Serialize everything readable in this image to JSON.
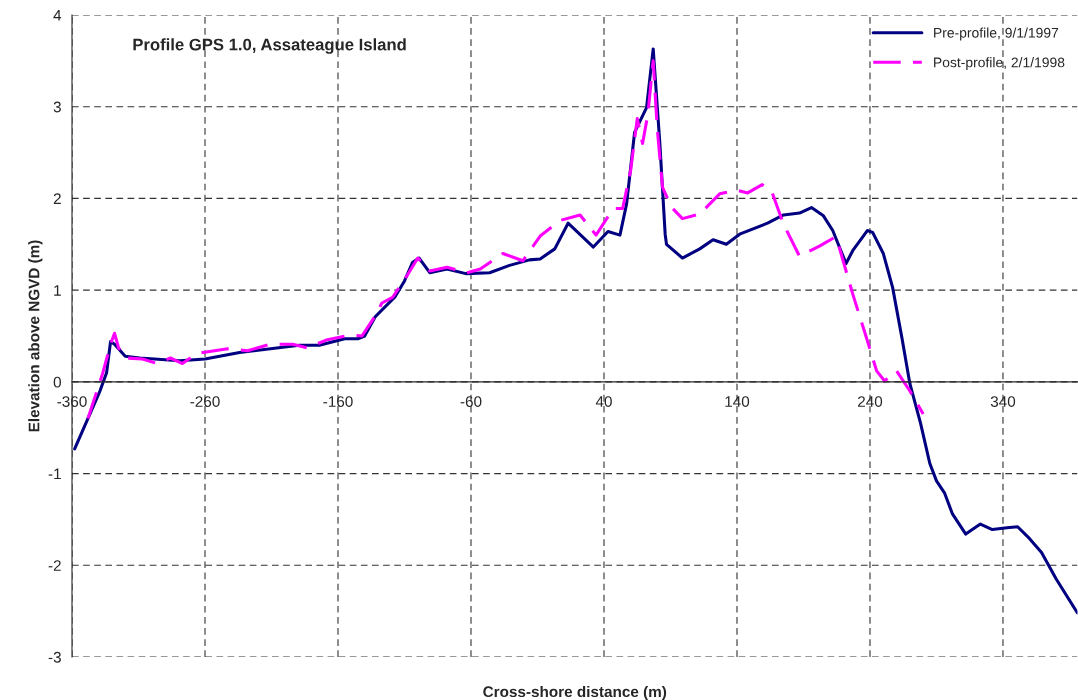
{
  "chart_data": {
    "type": "line",
    "title": "Profile GPS 1.0, Assateague Island",
    "xlabel": "Cross-shore distance (m)",
    "ylabel": "Elevation above NGVD (m)",
    "xlim": [
      -360,
      396
    ],
    "xticks": [
      -360,
      -260,
      -160,
      -60,
      40,
      140,
      240,
      340
    ],
    "ylim": [
      -3,
      4
    ],
    "yticks": [
      -3,
      -2,
      -1,
      0,
      1,
      2,
      3,
      4
    ],
    "grid": true,
    "legend": "top right",
    "series": [
      {
        "name": "Pre-profile, 9/1/1997",
        "color": "#000080",
        "line_style": "solid",
        "x": [
          -358,
          -339,
          -334,
          -331,
          -328,
          -320,
          -309,
          -279,
          -260,
          -234,
          -189,
          -174,
          -155,
          -145,
          -140,
          -132,
          -117,
          -110,
          -104,
          -99,
          -91,
          -78,
          -64,
          -46,
          -31,
          -16,
          -8,
          3,
          13,
          32,
          43,
          52,
          57,
          63,
          72,
          77,
          82,
          86,
          87,
          99,
          112,
          122,
          132,
          142,
          163,
          175,
          187,
          196,
          205,
          212,
          222,
          227,
          238,
          242,
          250,
          257,
          264,
          270,
          278,
          285,
          290,
          296,
          302,
          312,
          323,
          332,
          343,
          351,
          360,
          369,
          380,
          396
        ],
        "values": [
          -0.73,
          -0.1,
          0.1,
          0.44,
          0.41,
          0.28,
          0.26,
          0.23,
          0.25,
          0.32,
          0.4,
          0.4,
          0.47,
          0.47,
          0.5,
          0.71,
          0.93,
          1.1,
          1.3,
          1.35,
          1.19,
          1.23,
          1.18,
          1.19,
          1.27,
          1.33,
          1.34,
          1.45,
          1.73,
          1.47,
          1.64,
          1.6,
          1.94,
          2.72,
          2.99,
          3.63,
          2.6,
          1.61,
          1.5,
          1.35,
          1.45,
          1.55,
          1.5,
          1.61,
          1.73,
          1.82,
          1.84,
          1.9,
          1.81,
          1.65,
          1.29,
          1.43,
          1.65,
          1.63,
          1.4,
          1.03,
          0.48,
          -0.02,
          -0.45,
          -0.89,
          -1.08,
          -1.21,
          -1.44,
          -1.66,
          -1.55,
          -1.61,
          -1.59,
          -1.58,
          -1.71,
          -1.86,
          -2.15,
          -2.52
        ]
      },
      {
        "name": "Post-profile, 2/1/1998",
        "color": "#ff00ff",
        "line_style": "dashed",
        "x": [
          -348,
          -337,
          -331,
          -328,
          -325,
          -319,
          -307,
          -296,
          -286,
          -277,
          -266,
          -243,
          -228,
          -211,
          -194,
          -183,
          -168,
          -151,
          -142,
          -132,
          -127,
          -119,
          -108,
          -100,
          -91,
          -78,
          -63,
          -53,
          -36,
          -21,
          -8,
          7,
          22,
          34,
          47,
          54,
          60,
          65,
          69,
          73,
          77,
          80,
          84,
          91,
          99,
          112,
          127,
          140,
          148,
          159,
          166,
          175,
          187,
          202,
          214,
          217,
          227,
          238,
          245,
          251,
          260,
          270,
          280
        ],
        "values": [
          -0.4,
          0.09,
          0.41,
          0.53,
          0.37,
          0.26,
          0.25,
          0.2,
          0.26,
          0.2,
          0.31,
          0.36,
          0.34,
          0.41,
          0.41,
          0.37,
          0.46,
          0.51,
          0.5,
          0.72,
          0.86,
          0.92,
          1.16,
          1.35,
          1.21,
          1.25,
          1.19,
          1.23,
          1.4,
          1.32,
          1.59,
          1.76,
          1.82,
          1.6,
          1.89,
          1.89,
          2.3,
          2.87,
          2.6,
          2.92,
          3.5,
          2.77,
          2.12,
          1.9,
          1.78,
          1.83,
          2.05,
          2.09,
          2.06,
          2.15,
          2.08,
          1.72,
          1.37,
          1.48,
          1.58,
          1.46,
          0.96,
          0.45,
          0.12,
          0.01,
          0.12,
          -0.1,
          -0.35
        ]
      }
    ]
  }
}
